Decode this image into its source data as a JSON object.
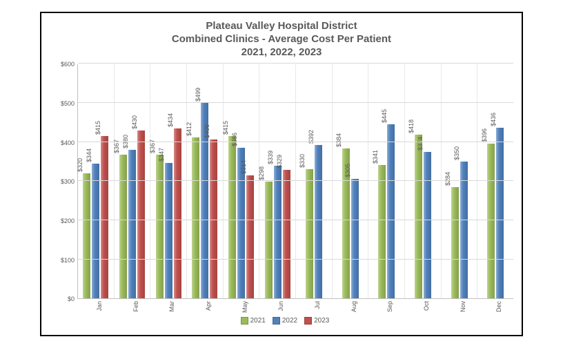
{
  "title_line1": "Plateau Valley Hospital District",
  "title_line2": "Combined Clinics  - Average Cost Per Patient",
  "title_line3": "2021, 2022, 2023",
  "chart": {
    "type": "bar",
    "currency_prefix": "$",
    "categories": [
      "Jan",
      "Feb",
      "Mar",
      "Apr",
      "May",
      "Jun",
      "Jul",
      "Aug",
      "Sep",
      "Oct",
      "Nov",
      "Dec"
    ],
    "series": [
      {
        "name": "2021",
        "color": "#9bbb59",
        "values": [
          320,
          367,
          367,
          412,
          415,
          298,
          330,
          384,
          341,
          418,
          284,
          396
        ]
      },
      {
        "name": "2022",
        "color": "#4f81bd",
        "values": [
          344,
          380,
          347,
          499,
          386,
          339,
          392,
          305,
          445,
          374,
          350,
          436
        ]
      },
      {
        "name": "2023",
        "color": "#c0504d",
        "values": [
          415,
          430,
          434,
          406,
          314,
          329,
          null,
          null,
          null,
          null,
          null,
          null
        ]
      }
    ],
    "y_axis": {
      "min": 0,
      "max": 600,
      "step": 100
    },
    "grid_color": "#d9d9d9",
    "axis_color": "#bfbfbf",
    "label_color": "#595959",
    "label_fontsize": 9,
    "title_color": "#595959",
    "title_fontsize": 15
  },
  "legend": {
    "items": [
      {
        "label": "2021",
        "color": "#9bbb59"
      },
      {
        "label": "2022",
        "color": "#4f81bd"
      },
      {
        "label": "2023",
        "color": "#c0504d"
      }
    ]
  }
}
